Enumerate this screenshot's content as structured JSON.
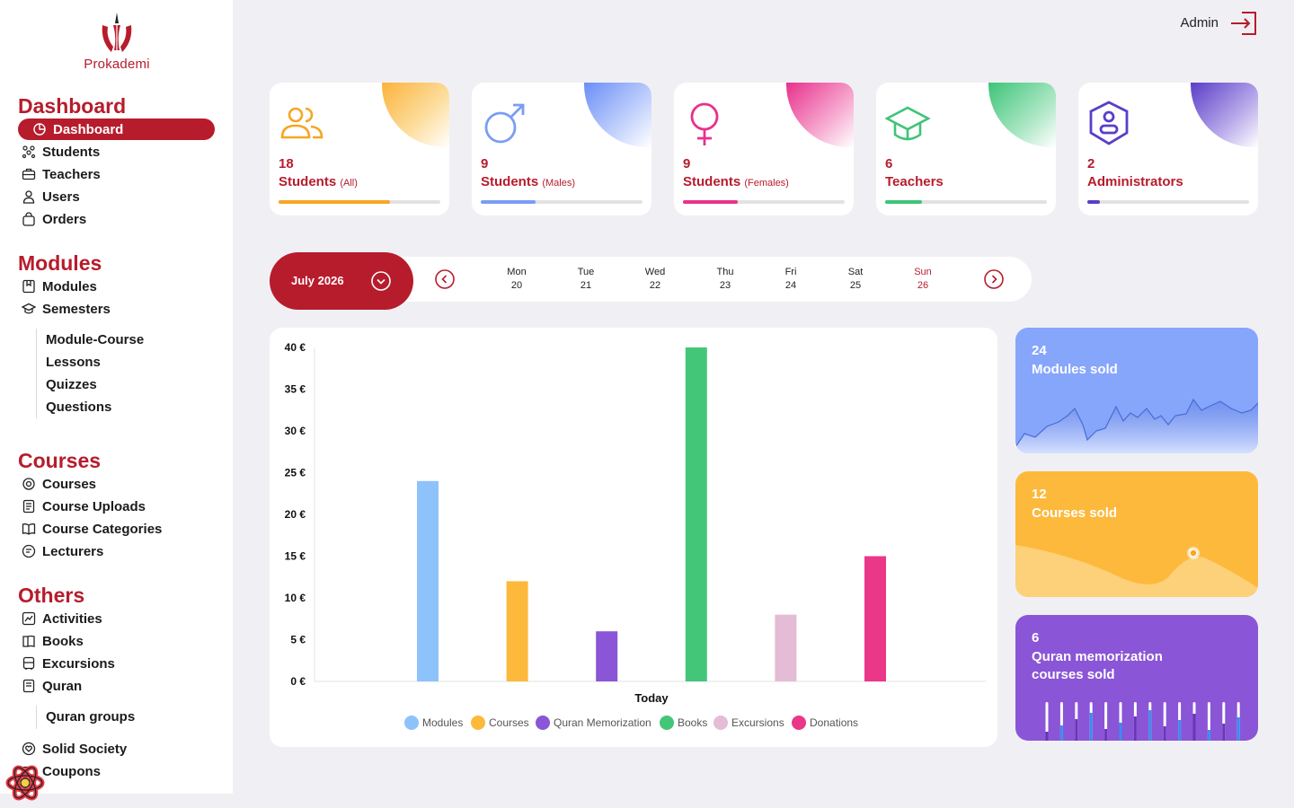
{
  "brand": {
    "name_part1": "Pro",
    "name_part2": "kademi"
  },
  "header": {
    "user": "Admin"
  },
  "sidebar": {
    "dashboard": {
      "title": "Dashboard",
      "items": [
        {
          "label": "Dashboard",
          "icon": "pie-chart-icon"
        },
        {
          "label": "Students",
          "icon": "students-icon"
        },
        {
          "label": "Teachers",
          "icon": "briefcase-icon"
        },
        {
          "label": "Users",
          "icon": "user-icon"
        },
        {
          "label": "Orders",
          "icon": "shopping-bag-icon"
        }
      ]
    },
    "modules": {
      "title": "Modules",
      "items": [
        {
          "label": "Modules",
          "icon": "bookmark-icon"
        },
        {
          "label": "Semesters",
          "icon": "graduation-cap-icon"
        }
      ],
      "sub": [
        "Module-Course",
        "Lessons",
        "Quizzes",
        "Questions"
      ]
    },
    "courses": {
      "title": "Courses",
      "items": [
        {
          "label": "Courses",
          "icon": "badge-icon"
        },
        {
          "label": "Course Uploads",
          "icon": "document-icon"
        },
        {
          "label": "Course Categories",
          "icon": "open-book-icon"
        },
        {
          "label": "Lecturers",
          "icon": "lecturer-icon"
        }
      ]
    },
    "others": {
      "title": "Others",
      "items": [
        {
          "label": "Activities",
          "icon": "activity-icon"
        },
        {
          "label": "Books",
          "icon": "book-icon"
        },
        {
          "label": "Excursions",
          "icon": "bus-icon"
        },
        {
          "label": "Quran",
          "icon": "quran-icon"
        }
      ],
      "sub": [
        "Quran groups"
      ],
      "items2": [
        {
          "label": "Solid Society",
          "icon": "heart-hands-icon"
        },
        {
          "label": "Coupons",
          "icon": "coupon-icon"
        }
      ]
    }
  },
  "stats": [
    {
      "value": "18",
      "label": "Students",
      "qualifier": "(All)",
      "color": "#f5a623",
      "progress": 0.69
    },
    {
      "value": "9",
      "label": "Students",
      "qualifier": "(Males)",
      "color": "#7a9cf5",
      "progress": 0.34
    },
    {
      "value": "9",
      "label": "Students",
      "qualifier": "(Females)",
      "color": "#e9308c",
      "progress": 0.34
    },
    {
      "value": "6",
      "label": "Teachers",
      "qualifier": "",
      "color": "#3ec478",
      "progress": 0.23
    },
    {
      "value": "2",
      "label": "Administrators",
      "qualifier": "",
      "color": "#5a3ec8",
      "progress": 0.08
    }
  ],
  "calendar": {
    "month": "July 2026",
    "days": [
      {
        "name": "Mon",
        "date": "20"
      },
      {
        "name": "Tue",
        "date": "21"
      },
      {
        "name": "Wed",
        "date": "22"
      },
      {
        "name": "Thu",
        "date": "23"
      },
      {
        "name": "Fri",
        "date": "24"
      },
      {
        "name": "Sat",
        "date": "25"
      },
      {
        "name": "Sun",
        "date": "26"
      }
    ]
  },
  "chart_data": {
    "type": "bar",
    "categories": [
      "Today"
    ],
    "xlabel": "Today",
    "ylim": [
      0,
      40
    ],
    "yticks": [
      "0 €",
      "5 €",
      "10 €",
      "15 €",
      "20 €",
      "25 €",
      "30 €",
      "35 €",
      "40 €"
    ],
    "series": [
      {
        "name": "Modules",
        "values": [
          24
        ],
        "color": "#8ec2fb"
      },
      {
        "name": "Courses",
        "values": [
          12
        ],
        "color": "#fdb93b"
      },
      {
        "name": "Quran Memorization",
        "values": [
          6
        ],
        "color": "#8a55d6"
      },
      {
        "name": "Books",
        "values": [
          40
        ],
        "color": "#44c679"
      },
      {
        "name": "Excursions",
        "values": [
          8
        ],
        "color": "#e4bcd6"
      },
      {
        "name": "Donations",
        "values": [
          15
        ],
        "color": "#ea3788"
      }
    ],
    "legend": "bottom"
  },
  "mini_cards": [
    {
      "value": "24",
      "label": "Modules sold",
      "color": "#86a6fb"
    },
    {
      "value": "12",
      "label": "Courses sold",
      "color": "#fdb93b"
    },
    {
      "value": "6",
      "label": "Quran memorization courses sold",
      "color": "#8a55d6"
    }
  ]
}
